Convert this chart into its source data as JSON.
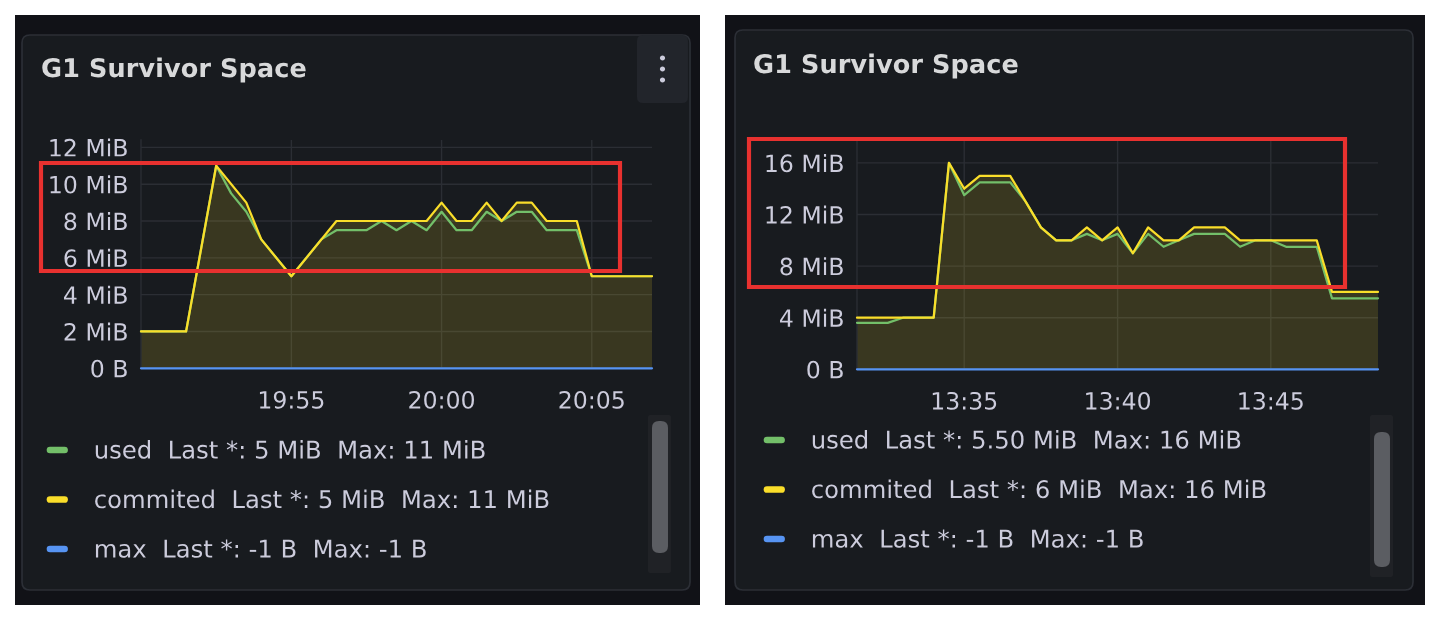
{
  "chart_data": [
    {
      "type": "area",
      "title": "G1 Survivor Space",
      "legend": "bottom",
      "grid": true,
      "xlim": [
        19.8333,
        20.1167
      ],
      "xticks": [
        {
          "value": 19.9167,
          "label": "19:55"
        },
        {
          "value": 20,
          "label": "20:00"
        },
        {
          "value": 20.0833,
          "label": "20:05"
        }
      ],
      "ylim": [
        0,
        12.4
      ],
      "yticks": [
        {
          "value": 0,
          "label": "0 B"
        },
        {
          "value": 2,
          "label": "2 MiB"
        },
        {
          "value": 4,
          "label": "4 MiB"
        },
        {
          "value": 6,
          "label": "6 MiB"
        },
        {
          "value": 8,
          "label": "8 MiB"
        },
        {
          "value": 10,
          "label": "10 MiB"
        },
        {
          "value": 12,
          "label": "12 MiB"
        }
      ],
      "series": [
        {
          "name": "used  Last *: 5 MiB  Max: 11 MiB",
          "color": "#73bf69",
          "type": "line",
          "x": [
            19.8333,
            19.8583,
            19.875,
            19.8833,
            19.8917,
            19.9,
            19.9167,
            19.9333,
            19.9417,
            19.9583,
            19.9667,
            19.975,
            19.9833,
            19.9917,
            20,
            20.0083,
            20.0167,
            20.025,
            20.0333,
            20.0417,
            20.05,
            20.0583,
            20.075,
            20.0833,
            20.1167
          ],
          "values": [
            2,
            2,
            11,
            9.5,
            8.5,
            7,
            5,
            7,
            7.5,
            7.5,
            8,
            7.5,
            8,
            7.5,
            8.5,
            7.5,
            7.5,
            8.5,
            8,
            8.5,
            8.5,
            7.5,
            7.5,
            5,
            5
          ]
        },
        {
          "name": "commited  Last *: 5 MiB  Max: 11 MiB",
          "color": "#fade2a",
          "x": [
            19.8333,
            19.8583,
            19.875,
            19.8917,
            19.9,
            19.9167,
            19.9417,
            19.9917,
            20,
            20.0083,
            20.0167,
            20.025,
            20.0333,
            20.0417,
            20.05,
            20.0583,
            20.075,
            20.0833,
            20.1167
          ],
          "values": [
            2,
            2,
            11,
            9,
            7,
            5,
            8,
            8,
            9,
            8,
            8,
            9,
            8,
            9,
            9,
            8,
            8,
            5,
            5
          ]
        },
        {
          "name": "max  Last *: -1 B  Max: -1 B",
          "color": "#5794f2",
          "type": "line",
          "x": [
            19.8333,
            20.1167
          ],
          "values": [
            0,
            0
          ]
        }
      ]
    },
    {
      "type": "area",
      "title": "G1 Survivor Space",
      "legend": "bottom",
      "grid": true,
      "xlim": [
        13.525,
        13.8083
      ],
      "xticks": [
        {
          "value": 13.5833,
          "label": "13:35"
        },
        {
          "value": 13.6667,
          "label": "13:40"
        },
        {
          "value": 13.75,
          "label": "13:45"
        }
      ],
      "ylim": [
        0,
        17.7
      ],
      "yticks": [
        {
          "value": 0,
          "label": "0 B"
        },
        {
          "value": 4,
          "label": "4 MiB"
        },
        {
          "value": 8,
          "label": "8 MiB"
        },
        {
          "value": 12,
          "label": "12 MiB"
        },
        {
          "value": 16,
          "label": "16 MiB"
        }
      ],
      "series": [
        {
          "name": "used  Last *: 5.50 MiB  Max: 16 MiB",
          "color": "#73bf69",
          "type": "line",
          "x": [
            13.525,
            13.5417,
            13.55,
            13.5667,
            13.575,
            13.5833,
            13.5917,
            13.6083,
            13.6167,
            13.625,
            13.6333,
            13.6417,
            13.65,
            13.6583,
            13.6667,
            13.675,
            13.6833,
            13.6917,
            13.7,
            13.7083,
            13.725,
            13.7333,
            13.7417,
            13.75,
            13.7583,
            13.775,
            13.7833,
            13.8083
          ],
          "values": [
            3.6,
            3.6,
            4,
            4,
            16,
            13.5,
            14.5,
            14.5,
            13,
            11,
            10,
            10,
            10.5,
            10,
            10.5,
            9,
            10.5,
            9.5,
            10,
            10.5,
            10.5,
            9.5,
            10,
            10,
            9.5,
            9.5,
            5.5,
            5.5
          ]
        },
        {
          "name": "commited  Last *: 6 MiB  Max: 16 MiB",
          "color": "#fade2a",
          "x": [
            13.525,
            13.5667,
            13.575,
            13.5833,
            13.5917,
            13.6083,
            13.6167,
            13.625,
            13.6333,
            13.6417,
            13.65,
            13.6583,
            13.6667,
            13.675,
            13.6833,
            13.6917,
            13.7,
            13.7083,
            13.725,
            13.7333,
            13.775,
            13.7833,
            13.8083
          ],
          "values": [
            4,
            4,
            16,
            14,
            15,
            15,
            13,
            11,
            10,
            10,
            11,
            10,
            11,
            9,
            11,
            10,
            10,
            11,
            11,
            10,
            10,
            6,
            6
          ]
        },
        {
          "name": "max  Last *: -1 B  Max: -1 B",
          "color": "#5794f2",
          "type": "line",
          "x": [
            13.525,
            13.8083
          ],
          "values": [
            0,
            0
          ]
        }
      ]
    }
  ]
}
